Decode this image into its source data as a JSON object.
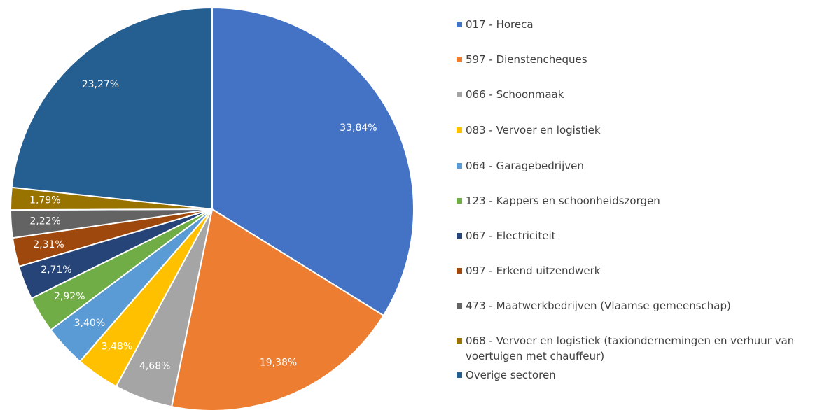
{
  "chart_data": {
    "type": "pie",
    "categories": [
      "017 - Horeca",
      "597 - Dienstencheques",
      "066 - Schoonmaak",
      "083 - Vervoer en logistiek",
      "064 - Garagebedrijven",
      "123 - Kappers en schoonheidszorgen",
      "067 - Electriciteit",
      "097 - Erkend uitzendwerk",
      "473 - Maatwerkbedrijven (Vlaamse gemeenschap)",
      "068 - Vervoer en logistiek (taxiondernemingen en verhuur van voertuigen met chauffeur)",
      "Overige sectoren"
    ],
    "values": [
      33.84,
      19.38,
      4.68,
      3.48,
      3.4,
      2.92,
      2.71,
      2.31,
      2.22,
      1.79,
      23.27
    ],
    "value_labels": [
      "33,84%",
      "19,38%",
      "4,68%",
      "3,48%",
      "3,40%",
      "2,92%",
      "2,71%",
      "2,31%",
      "2,22%",
      "1,79%",
      "23,27%"
    ],
    "colors": [
      "#4472c4",
      "#ed7d31",
      "#a5a5a5",
      "#ffc000",
      "#5b9bd5",
      "#70ad47",
      "#264478",
      "#9e480e",
      "#636363",
      "#997300",
      "#255e91"
    ],
    "legend": "right"
  }
}
